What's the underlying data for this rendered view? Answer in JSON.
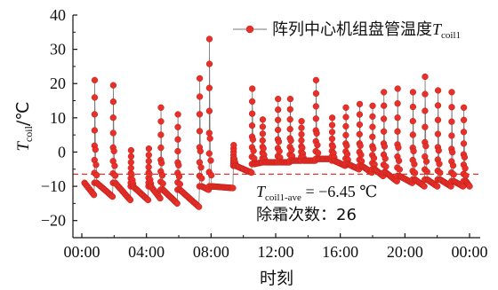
{
  "chart_data": {
    "type": "scatter",
    "xlabel": "时刻",
    "ylabel": {
      "main": "T",
      "sub": "coil",
      "unit": "/℃"
    },
    "x_ticks": [
      "00:00",
      "04:00",
      "08:00",
      "12:00",
      "16:00",
      "20:00",
      "00:00"
    ],
    "xlim_hours": [
      0,
      24
    ],
    "ylim": [
      -25,
      40
    ],
    "y_ticks": [
      -20,
      -10,
      0,
      10,
      20,
      30,
      40
    ],
    "legend": {
      "label_prefix": "阵列中心机组盘管温度",
      "symbol": "T",
      "sub": "coil1",
      "placement": "top-right"
    },
    "reference_line": {
      "value": -6.45,
      "color": "#e8302a",
      "style": "dashed"
    },
    "annotations": {
      "avg_symbol": "T",
      "avg_sub": "coil1-ave",
      "avg_value_text": " = −6.45 ℃",
      "defrost_text": "除霜次数：26"
    },
    "series": [
      {
        "name": "阵列中心机组盘管温度Tcoil1",
        "color": "#e8302a",
        "cycles": [
          {
            "t": 0.05,
            "end": 0.75,
            "base": -9,
            "min": -12.5,
            "peak": null
          },
          {
            "t": 0.8,
            "end": 1.9,
            "base": -9,
            "min": -13,
            "peak": 21
          },
          {
            "t": 1.95,
            "end": 3.0,
            "base": -9,
            "min": -14,
            "peak": 19.5
          },
          {
            "t": 3.05,
            "end": 4.1,
            "base": -10,
            "min": -14,
            "peak": 0.5
          },
          {
            "t": 4.15,
            "end": 4.85,
            "base": -10,
            "min": -13.5,
            "peak": 1
          },
          {
            "t": 4.9,
            "end": 5.9,
            "base": -11,
            "min": -15,
            "peak": 13
          },
          {
            "t": 5.95,
            "end": 7.25,
            "base": -11,
            "min": -16,
            "peak": 11
          },
          {
            "t": 7.3,
            "end": 7.85,
            "base": -10,
            "min": -11,
            "peak": 21.5
          },
          {
            "t": 7.9,
            "end": 9.35,
            "base": -10,
            "min": -10.5,
            "peak": 33
          },
          {
            "t": 9.4,
            "end": 10.5,
            "base": -4,
            "min": -6,
            "peak": 2
          },
          {
            "t": 10.55,
            "end": 11.15,
            "base": -3.5,
            "min": -3,
            "peak": 18.5
          },
          {
            "t": 11.2,
            "end": 12.1,
            "base": -3,
            "min": -3,
            "peak": 9.5
          },
          {
            "t": 12.15,
            "end": 12.85,
            "base": -3,
            "min": -3,
            "peak": 15.5
          },
          {
            "t": 12.9,
            "end": 13.55,
            "base": -2.5,
            "min": -2.5,
            "peak": 15.5
          },
          {
            "t": 13.6,
            "end": 14.45,
            "base": -2.5,
            "min": -2.5,
            "peak": 9
          },
          {
            "t": 14.5,
            "end": 15.45,
            "base": -2,
            "min": -2,
            "peak": 21
          },
          {
            "t": 15.5,
            "end": 16.3,
            "base": -2.5,
            "min": -4,
            "peak": 10
          },
          {
            "t": 16.35,
            "end": 17.15,
            "base": -3.5,
            "min": -5,
            "peak": 13
          },
          {
            "t": 17.2,
            "end": 17.95,
            "base": -4,
            "min": -6,
            "peak": 14
          },
          {
            "t": 18.0,
            "end": 18.65,
            "base": -5,
            "min": -7,
            "peak": 13.5
          },
          {
            "t": 18.7,
            "end": 19.5,
            "base": -6,
            "min": -8.5,
            "peak": 17.5
          },
          {
            "t": 19.55,
            "end": 20.45,
            "base": -7,
            "min": -9,
            "peak": 18.5
          },
          {
            "t": 20.5,
            "end": 21.2,
            "base": -8,
            "min": -10,
            "peak": 17.5
          },
          {
            "t": 21.25,
            "end": 22.0,
            "base": -8,
            "min": -10,
            "peak": 22
          },
          {
            "t": 22.05,
            "end": 22.85,
            "base": -8,
            "min": -10,
            "peak": 18
          },
          {
            "t": 22.9,
            "end": 23.6,
            "base": -8.5,
            "min": -10,
            "peak": 17.5
          },
          {
            "t": 23.65,
            "end": 24.0,
            "base": -8.5,
            "min": -10,
            "peak": 13
          }
        ]
      }
    ]
  }
}
